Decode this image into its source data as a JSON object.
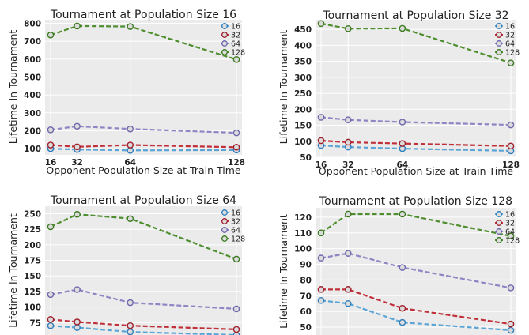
{
  "chart_data": [
    {
      "type": "line",
      "title": "Tournament at Population Size 16",
      "xlabel": "Opponent Population Size at Train Time",
      "ylabel": "Lifetime In Tournament",
      "x": [
        16,
        32,
        64,
        128
      ],
      "x_tick_labels": [
        "16",
        "32",
        "64",
        "128"
      ],
      "xlim": [
        16,
        128
      ],
      "ylim": [
        65,
        820
      ],
      "y_ticks": [
        100,
        200,
        300,
        400,
        500,
        600,
        700,
        800
      ],
      "y_tick_labels": [
        "100",
        "200",
        "300",
        "400",
        "500",
        "600",
        "700",
        "800"
      ],
      "grid": true,
      "legend_position": "top-right",
      "series": [
        {
          "name": "16",
          "values": [
            100,
            95,
            90,
            92
          ]
        },
        {
          "name": "32",
          "values": [
            120,
            110,
            120,
            108
          ]
        },
        {
          "name": "64",
          "values": [
            205,
            225,
            210,
            188
          ]
        },
        {
          "name": "128",
          "values": [
            735,
            785,
            782,
            598
          ]
        }
      ]
    },
    {
      "type": "line",
      "title": "Tournament at Population Size 32",
      "xlabel": "Opponent Population Size at Train Time",
      "ylabel": "Lifetime In Tournament",
      "x": [
        16,
        32,
        64,
        128
      ],
      "x_tick_labels": [
        "16",
        "32",
        "64",
        "128"
      ],
      "xlim": [
        16,
        128
      ],
      "ylim": [
        50,
        480
      ],
      "y_ticks": [
        50,
        100,
        150,
        200,
        250,
        300,
        350,
        400,
        450
      ],
      "y_tick_labels": [
        "50",
        "100",
        "150",
        "200",
        "250",
        "300",
        "350",
        "400",
        "450"
      ],
      "grid": true,
      "legend_position": "top-right",
      "series": [
        {
          "name": "16",
          "values": [
            87,
            82,
            77,
            70
          ]
        },
        {
          "name": "32",
          "values": [
            102,
            97,
            93,
            85
          ]
        },
        {
          "name": "64",
          "values": [
            175,
            167,
            160,
            151
          ]
        },
        {
          "name": "128",
          "values": [
            468,
            452,
            453,
            345
          ]
        }
      ]
    },
    {
      "type": "line",
      "title": "Tournament at Population Size 64",
      "xlabel": "",
      "ylabel": "Lifetime In Tournament",
      "x": [
        16,
        32,
        64,
        128
      ],
      "x_tick_labels": [
        "16",
        "32",
        "64",
        "128"
      ],
      "xlim": [
        16,
        128
      ],
      "ylim": [
        55,
        262
      ],
      "y_ticks": [
        75,
        100,
        125,
        150,
        175,
        200,
        225,
        250
      ],
      "y_tick_labels": [
        "75",
        "100",
        "125",
        "150",
        "175",
        "200",
        "225",
        "250"
      ],
      "grid": true,
      "legend_position": "top-right",
      "series": [
        {
          "name": "16",
          "values": [
            70,
            67,
            60,
            55
          ]
        },
        {
          "name": "32",
          "values": [
            80,
            76,
            70,
            64
          ]
        },
        {
          "name": "64",
          "values": [
            120,
            128,
            107,
            97
          ]
        },
        {
          "name": "128",
          "values": [
            229,
            249,
            242,
            177
          ]
        }
      ]
    },
    {
      "type": "line",
      "title": "Tournament at Population Size 128",
      "xlabel": "",
      "ylabel": "Lifetime In Tournament",
      "x": [
        16,
        32,
        64,
        128
      ],
      "x_tick_labels": [
        "16",
        "32",
        "64",
        "128"
      ],
      "xlim": [
        16,
        128
      ],
      "ylim": [
        45,
        126
      ],
      "y_ticks": [
        50,
        60,
        70,
        80,
        90,
        100,
        110,
        120
      ],
      "y_tick_labels": [
        "50",
        "60",
        "70",
        "80",
        "90",
        "100",
        "110",
        "120"
      ],
      "grid": true,
      "legend_position": "top-right",
      "series": [
        {
          "name": "16",
          "values": [
            67,
            65,
            53,
            48
          ]
        },
        {
          "name": "32",
          "values": [
            74,
            74,
            62,
            52
          ]
        },
        {
          "name": "64",
          "values": [
            94,
            97,
            88,
            75
          ]
        },
        {
          "name": "128",
          "values": [
            110,
            122,
            122,
            108
          ]
        }
      ]
    }
  ],
  "series_colors": {
    "16": {
      "line": "#5ba4d6",
      "marker": "#2f7fbf"
    },
    "32": {
      "line": "#c0303a",
      "marker": "#a0202c"
    },
    "64": {
      "line": "#8d86c4",
      "marker": "#6f68ad"
    },
    "128": {
      "line": "#4e8e2e",
      "marker": "#3b7a20"
    }
  }
}
